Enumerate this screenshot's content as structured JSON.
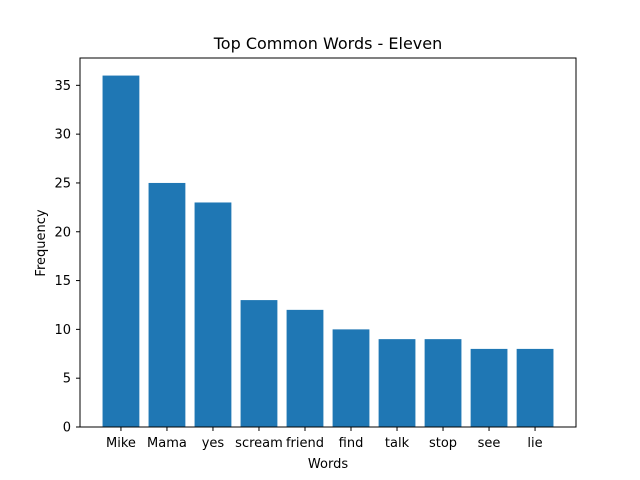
{
  "chart_data": {
    "type": "bar",
    "title": "Top Common Words - Eleven",
    "xlabel": "Words",
    "ylabel": "Frequency",
    "categories": [
      "Mike",
      "Mama",
      "yes",
      "scream",
      "friend",
      "find",
      "talk",
      "stop",
      "see",
      "lie"
    ],
    "values": [
      36,
      25,
      23,
      13,
      12,
      10,
      9,
      9,
      8,
      8
    ],
    "ylim": [
      0,
      37.8
    ],
    "yticks": [
      0,
      5,
      10,
      15,
      20,
      25,
      30,
      35
    ],
    "grid": false,
    "bar_color": "#1f77b4"
  }
}
